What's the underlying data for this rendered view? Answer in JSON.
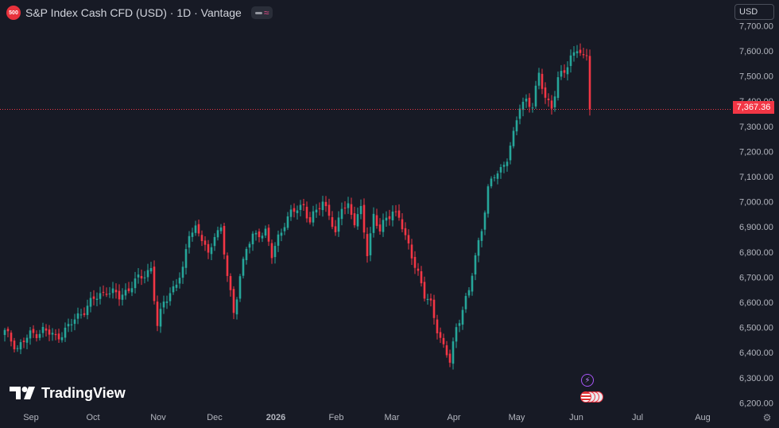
{
  "header": {
    "symbol_badge": "500",
    "title": "S&P Index Cash CFD (USD) · 1D · Vantage"
  },
  "currency": {
    "label": "USD"
  },
  "last_price": "7,367.36",
  "watermark": {
    "text": "TradingView"
  },
  "markers": {
    "event_icon": "lightning-icon",
    "flag_icon": "us-flag-icon"
  },
  "settings": {
    "icon": "gear-icon"
  },
  "colors": {
    "background": "#171a25",
    "up": "#26a69a",
    "down": "#f23645",
    "axis_text": "#b2b5be"
  },
  "chart_data": {
    "type": "candlestick",
    "title": "S&P Index Cash CFD (USD) · 1D · Vantage",
    "y_axis": {
      "ticks": [
        6200,
        6300,
        6400,
        6500,
        6600,
        6700,
        6800,
        6900,
        7000,
        7100,
        7200,
        7300,
        7400,
        7500,
        7600,
        7700
      ],
      "tick_labels": [
        "6,200.00",
        "6,300.00",
        "6,400.00",
        "6,500.00",
        "6,600.00",
        "6,700.00",
        "6,800.00",
        "6,900.00",
        "7,000.00",
        "7,100.00",
        "7,200.00",
        "7,300.00",
        "7,400.00",
        "7,500.00",
        "7,600.00",
        "7,700.00"
      ],
      "range": [
        6200,
        7700
      ]
    },
    "x_axis": {
      "labels": [
        "Sep",
        "Oct",
        "Nov",
        "Dec",
        "2026",
        "Feb",
        "Mar",
        "Apr",
        "May",
        "Jun",
        "Jul",
        "Aug"
      ],
      "bold": "2026"
    },
    "last_price": 7367.36,
    "grid": false,
    "close_path": [
      [
        0,
        6480
      ],
      [
        4,
        6420
      ],
      [
        8,
        6470
      ],
      [
        12,
        6490
      ],
      [
        16,
        6460
      ],
      [
        20,
        6500
      ],
      [
        24,
        6560
      ],
      [
        28,
        6610
      ],
      [
        32,
        6650
      ],
      [
        36,
        6620
      ],
      [
        40,
        6670
      ],
      [
        44,
        6710
      ],
      [
        46,
        6740
      ],
      [
        48,
        6500
      ],
      [
        50,
        6600
      ],
      [
        54,
        6680
      ],
      [
        56,
        6720
      ],
      [
        58,
        6880
      ],
      [
        60,
        6900
      ],
      [
        62,
        6850
      ],
      [
        64,
        6780
      ],
      [
        66,
        6880
      ],
      [
        68,
        6890
      ],
      [
        70,
        6700
      ],
      [
        72,
        6560
      ],
      [
        74,
        6710
      ],
      [
        76,
        6810
      ],
      [
        78,
        6860
      ],
      [
        80,
        6880
      ],
      [
        82,
        6880
      ],
      [
        84,
        6780
      ],
      [
        86,
        6860
      ],
      [
        88,
        6920
      ],
      [
        90,
        6950
      ],
      [
        92,
        6970
      ],
      [
        94,
        6990
      ],
      [
        96,
        6920
      ],
      [
        98,
        6960
      ],
      [
        100,
        7000
      ],
      [
        102,
        6960
      ],
      [
        104,
        6860
      ],
      [
        106,
        6980
      ],
      [
        108,
        6990
      ],
      [
        110,
        6920
      ],
      [
        112,
        6960
      ],
      [
        114,
        6800
      ],
      [
        116,
        6950
      ],
      [
        118,
        6880
      ],
      [
        120,
        6930
      ],
      [
        122,
        6970
      ],
      [
        124,
        6940
      ],
      [
        126,
        6850
      ],
      [
        128,
        6790
      ],
      [
        130,
        6720
      ],
      [
        132,
        6620
      ],
      [
        134,
        6590
      ],
      [
        136,
        6500
      ],
      [
        138,
        6420
      ],
      [
        140,
        6360
      ],
      [
        142,
        6500
      ],
      [
        144,
        6580
      ],
      [
        146,
        6640
      ],
      [
        148,
        6780
      ],
      [
        150,
        6900
      ],
      [
        152,
        7050
      ],
      [
        154,
        7100
      ],
      [
        156,
        7130
      ],
      [
        158,
        7180
      ],
      [
        160,
        7260
      ],
      [
        162,
        7380
      ],
      [
        164,
        7410
      ],
      [
        166,
        7380
      ],
      [
        168,
        7500
      ],
      [
        170,
        7420
      ],
      [
        172,
        7380
      ],
      [
        174,
        7480
      ],
      [
        176,
        7520
      ],
      [
        178,
        7580
      ],
      [
        180,
        7610
      ],
      [
        182,
        7560
      ],
      [
        183,
        7580
      ],
      [
        184,
        7367.36
      ]
    ]
  }
}
